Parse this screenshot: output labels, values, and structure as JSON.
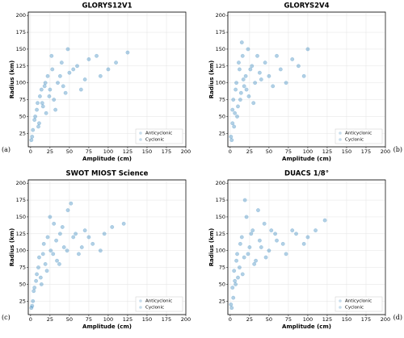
{
  "chart_data": [
    {
      "type": "scatter",
      "title": "GLORYS12V1",
      "panel_label": "(a)",
      "x_label": "Amplitude (cm)",
      "y_label": "Radius (km)",
      "xlim": [
        -3,
        200
      ],
      "ylim": [
        5,
        205
      ],
      "xticks": [
        0,
        25,
        50,
        75,
        100,
        125,
        150,
        175,
        200
      ],
      "yticks": [
        25,
        50,
        75,
        100,
        125,
        150,
        175,
        200
      ],
      "grid": true,
      "legend": "lower right",
      "series": [
        {
          "name": "Anticyclonic",
          "color": "#1f77b4",
          "x": [
            2,
            5,
            8,
            10,
            12,
            15,
            18,
            20,
            22,
            25,
            28,
            30,
            35,
            40,
            45,
            50,
            60,
            70,
            85,
            110
          ],
          "y": [
            20,
            45,
            60,
            35,
            80,
            70,
            95,
            55,
            110,
            90,
            120,
            75,
            100,
            130,
            85,
            115,
            125,
            105,
            140,
            130
          ]
        },
        {
          "name": "Cyclonic",
          "color": "#1f77b4",
          "x": [
            1,
            3,
            6,
            9,
            11,
            14,
            16,
            19,
            24,
            27,
            32,
            38,
            42,
            48,
            55,
            65,
            75,
            90,
            100,
            125
          ],
          "y": [
            15,
            30,
            50,
            70,
            40,
            90,
            65,
            100,
            80,
            140,
            60,
            110,
            95,
            150,
            120,
            90,
            135,
            110,
            120,
            145
          ]
        }
      ]
    },
    {
      "type": "scatter",
      "title": "GLORYS2V4",
      "panel_label": "(b)",
      "x_label": "Amplitude (cm)",
      "y_label": "Radius (km)",
      "xlim": [
        -3,
        200
      ],
      "ylim": [
        5,
        205
      ],
      "xticks": [
        0,
        25,
        50,
        75,
        100,
        125,
        150,
        175,
        200
      ],
      "yticks": [
        25,
        50,
        75,
        100,
        125,
        150,
        175,
        200
      ],
      "grid": true,
      "legend": "lower right",
      "series": [
        {
          "name": "Anticyclonic",
          "color": "#1f77b4",
          "x": [
            1,
            3,
            4,
            6,
            8,
            10,
            12,
            14,
            16,
            18,
            20,
            24,
            28,
            32,
            38,
            45,
            55,
            65,
            80,
            95
          ],
          "y": [
            20,
            40,
            75,
            55,
            100,
            65,
            120,
            85,
            140,
            95,
            110,
            80,
            125,
            100,
            115,
            130,
            95,
            120,
            135,
            110
          ]
        },
        {
          "name": "Cyclonic",
          "color": "#1f77b4",
          "x": [
            2,
            3,
            5,
            7,
            9,
            11,
            13,
            15,
            17,
            21,
            23,
            26,
            30,
            35,
            40,
            50,
            60,
            72,
            88,
            100
          ],
          "y": [
            15,
            60,
            35,
            90,
            50,
            130,
            75,
            160,
            105,
            90,
            150,
            120,
            70,
            140,
            105,
            110,
            140,
            100,
            125,
            150
          ]
        }
      ]
    },
    {
      "type": "scatter",
      "title": "SWOT MIOST Science",
      "panel_label": "(c)",
      "x_label": "Amplitude (cm)",
      "y_label": "Radius (km)",
      "xlim": [
        -3,
        200
      ],
      "ylim": [
        5,
        205
      ],
      "xticks": [
        0,
        25,
        50,
        75,
        100,
        125,
        150,
        175,
        200
      ],
      "yticks": [
        25,
        50,
        75,
        100,
        125,
        150,
        175,
        200
      ],
      "grid": true,
      "legend": "lower right",
      "series": [
        {
          "name": "Anticyclonic",
          "color": "#1f77b4",
          "x": [
            2,
            4,
            7,
            10,
            13,
            16,
            19,
            22,
            26,
            30,
            34,
            38,
            43,
            48,
            55,
            62,
            70,
            80,
            95,
            120
          ],
          "y": [
            18,
            40,
            55,
            75,
            60,
            95,
            80,
            120,
            100,
            140,
            85,
            125,
            105,
            160,
            120,
            95,
            130,
            110,
            125,
            140
          ]
        },
        {
          "name": "Cyclonic",
          "color": "#1f77b4",
          "x": [
            1,
            3,
            5,
            8,
            11,
            14,
            17,
            21,
            25,
            29,
            33,
            37,
            41,
            47,
            52,
            58,
            66,
            75,
            90,
            105
          ],
          "y": [
            15,
            25,
            45,
            65,
            90,
            50,
            110,
            70,
            150,
            95,
            115,
            80,
            135,
            100,
            170,
            125,
            105,
            120,
            100,
            135
          ]
        }
      ]
    },
    {
      "type": "scatter",
      "title": "DUACS 1/8°",
      "panel_label": "(d)",
      "x_label": "Amplitude (cm)",
      "y_label": "Radius (km)",
      "xlim": [
        -3,
        200
      ],
      "ylim": [
        5,
        205
      ],
      "xticks": [
        0,
        25,
        50,
        75,
        100,
        125,
        150,
        175,
        200
      ],
      "yticks": [
        25,
        50,
        75,
        100,
        125,
        150,
        175,
        200
      ],
      "grid": true,
      "legend": "lower right",
      "series": [
        {
          "name": "Anticyclonic",
          "color": "#1f77b4",
          "x": [
            1,
            3,
            5,
            7,
            9,
            12,
            15,
            18,
            21,
            25,
            29,
            33,
            38,
            44,
            50,
            58,
            68,
            80,
            100,
            122
          ],
          "y": [
            20,
            45,
            70,
            50,
            95,
            75,
            120,
            90,
            150,
            105,
            130,
            85,
            115,
            140,
            100,
            125,
            110,
            130,
            120,
            145
          ]
        },
        {
          "name": "Cyclonic",
          "color": "#1f77b4",
          "x": [
            2,
            4,
            6,
            8,
            10,
            13,
            16,
            19,
            23,
            27,
            31,
            36,
            40,
            46,
            53,
            60,
            72,
            85,
            95,
            110
          ],
          "y": [
            15,
            30,
            55,
            85,
            60,
            110,
            65,
            175,
            95,
            125,
            80,
            160,
            105,
            90,
            130,
            115,
            95,
            125,
            110,
            130
          ]
        }
      ]
    }
  ]
}
